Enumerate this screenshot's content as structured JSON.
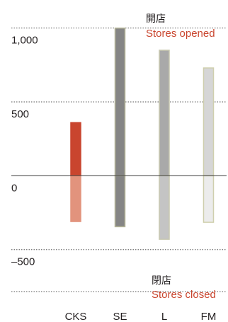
{
  "chart_data": {
    "type": "bar",
    "categories": [
      "CKS",
      "SE",
      "L",
      "FM"
    ],
    "series": [
      {
        "name": "Stores opened",
        "values": [
          360,
          1000,
          850,
          730
        ]
      },
      {
        "name": "Stores closed",
        "values": [
          -310,
          -345,
          -430,
          -315
        ]
      }
    ],
    "y_ticks": [
      {
        "value": 1000,
        "label": "1,000"
      },
      {
        "value": 500,
        "label": "500"
      },
      {
        "value": 0,
        "label": "0"
      },
      {
        "value": -500,
        "label": "–500"
      }
    ],
    "ylim": [
      -990,
      1190
    ],
    "grid": true,
    "annotations": {
      "opened_jp": "開店",
      "opened_en": "Stores opened",
      "closed_jp": "閉店",
      "closed_en": "Stores closed"
    },
    "colors": {
      "CKS": {
        "opened_fill": "#c9452e",
        "opened_stroke": "#c9452e",
        "closed_fill": "#e2937d",
        "closed_stroke": "#e2937d"
      },
      "SE": {
        "opened_fill": "#858585",
        "opened_stroke": "#b8b89a",
        "closed_fill": "#858585",
        "closed_stroke": "#b8b89a"
      },
      "L": {
        "opened_fill": "#a9a9a9",
        "opened_stroke": "#c8c8b0",
        "closed_fill": "#c4c4c4",
        "closed_stroke": "#c8c8b0"
      },
      "FM": {
        "opened_fill": "#d6d6d6",
        "opened_stroke": "#cfcfae",
        "closed_fill": "#ececec",
        "closed_stroke": "#cfcfae"
      }
    }
  }
}
